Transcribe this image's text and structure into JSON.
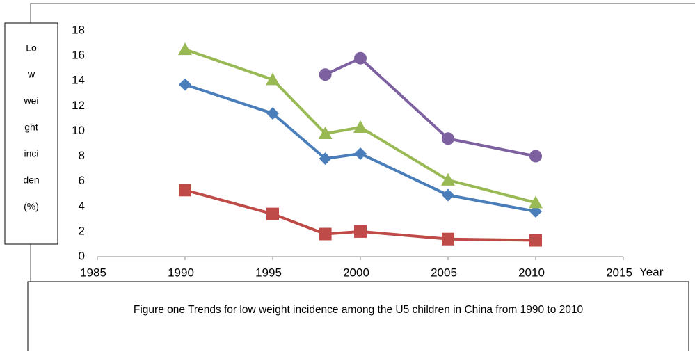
{
  "chart_data": {
    "type": "line",
    "y_label_lines": [
      "Lo",
      "w",
      "wei",
      "ght",
      "inci",
      "den",
      "(%)"
    ],
    "x_label": "Year",
    "caption": "Figure one Trends for low weight incidence among the U5 children in China from 1990 to 2010",
    "series": [
      {
        "color": "#4a7ebb",
        "marker": "diamond",
        "x": [
          1990,
          1995,
          1998,
          2000,
          2005,
          2010
        ],
        "values": [
          13.7,
          11.4,
          7.8,
          8.2,
          4.9,
          3.6
        ]
      },
      {
        "color": "#be4b48",
        "marker": "square",
        "x": [
          1990,
          1995,
          1998,
          2000,
          2005,
          2010
        ],
        "values": [
          5.3,
          3.4,
          1.8,
          2.0,
          1.4,
          1.3
        ]
      },
      {
        "color": "#98b954",
        "marker": "triangle",
        "x": [
          1990,
          1995,
          1998,
          2000,
          2005,
          2010
        ],
        "values": [
          16.5,
          14.1,
          9.8,
          10.3,
          6.1,
          4.3
        ]
      },
      {
        "color": "#7d60a0",
        "marker": "circle",
        "x": [
          1998,
          2000,
          2005,
          2010
        ],
        "values": [
          14.5,
          15.8,
          9.4,
          8.0
        ]
      }
    ],
    "xlim": [
      1985,
      2015
    ],
    "xticks": [
      1985,
      1990,
      1995,
      2000,
      2005,
      2010,
      2015
    ],
    "ylim": [
      0,
      18
    ],
    "yticks": [
      0,
      2,
      4,
      6,
      8,
      10,
      12,
      14,
      16,
      18
    ],
    "grid": false
  }
}
